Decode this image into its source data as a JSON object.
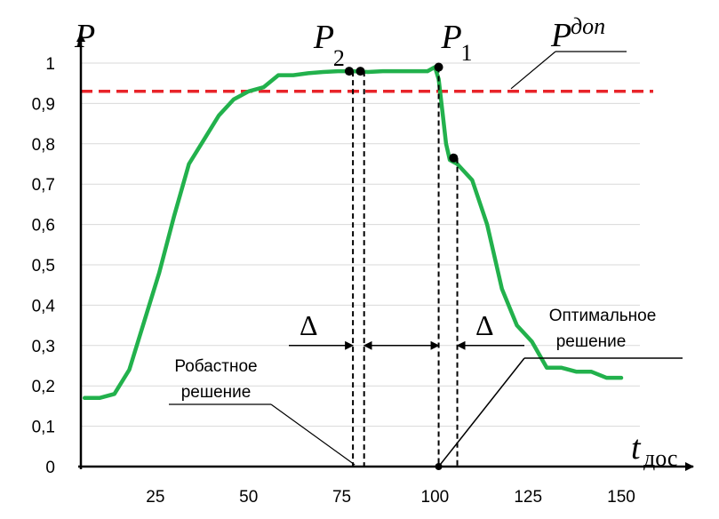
{
  "chart_data": {
    "type": "line",
    "ylabel": "P",
    "xlabel": "t",
    "xlabel_sub": "дос",
    "x_ticks": [
      "25",
      "50",
      "75",
      "100",
      "125",
      "150"
    ],
    "y_ticks": [
      "0",
      "0,1",
      "0,2",
      "0,3",
      "0,4",
      "0,5",
      "0,6",
      "0,7",
      "0,8",
      "0,9",
      "1"
    ],
    "xlim": [
      5,
      155
    ],
    "ylim": [
      0,
      1
    ],
    "grid": "horizontal",
    "series": [
      {
        "color": "#22b14c",
        "x": [
          6,
          10,
          14,
          18,
          22,
          26,
          30,
          34,
          38,
          42,
          46,
          50,
          54,
          58,
          62,
          66,
          70,
          74,
          78,
          82,
          86,
          90,
          94,
          98,
          100,
          101,
          102,
          103,
          104,
          106,
          110,
          114,
          118,
          122,
          126,
          130,
          134,
          138,
          142,
          146,
          150
        ],
        "y": [
          0.17,
          0.17,
          0.18,
          0.24,
          0.36,
          0.48,
          0.62,
          0.75,
          0.81,
          0.87,
          0.91,
          0.93,
          0.94,
          0.97,
          0.97,
          0.975,
          0.978,
          0.98,
          0.98,
          0.978,
          0.98,
          0.98,
          0.98,
          0.98,
          0.99,
          0.96,
          0.88,
          0.8,
          0.76,
          0.75,
          0.71,
          0.6,
          0.44,
          0.35,
          0.31,
          0.245,
          0.245,
          0.235,
          0.235,
          0.22,
          0.22
        ]
      }
    ],
    "threshold": {
      "value": 0.93,
      "color": "#e8242a",
      "label": "P",
      "label_sup": "доп"
    },
    "points": [
      {
        "label": "P",
        "label_sub": "2",
        "x": 77,
        "y": 0.98
      },
      {
        "x": 80,
        "y": 0.98
      },
      {
        "label": "P",
        "label_sub": "1",
        "x": 101,
        "y": 0.99
      },
      {
        "x": 105,
        "y": 0.765
      }
    ],
    "dashed_verticals": [
      78,
      81,
      101,
      106
    ],
    "delta_symbol": "Δ",
    "annotations": {
      "robust_line1": "Робастное",
      "robust_line2": "решение",
      "optimal_line1": "Оптимальное",
      "optimal_line2": "решение"
    }
  }
}
